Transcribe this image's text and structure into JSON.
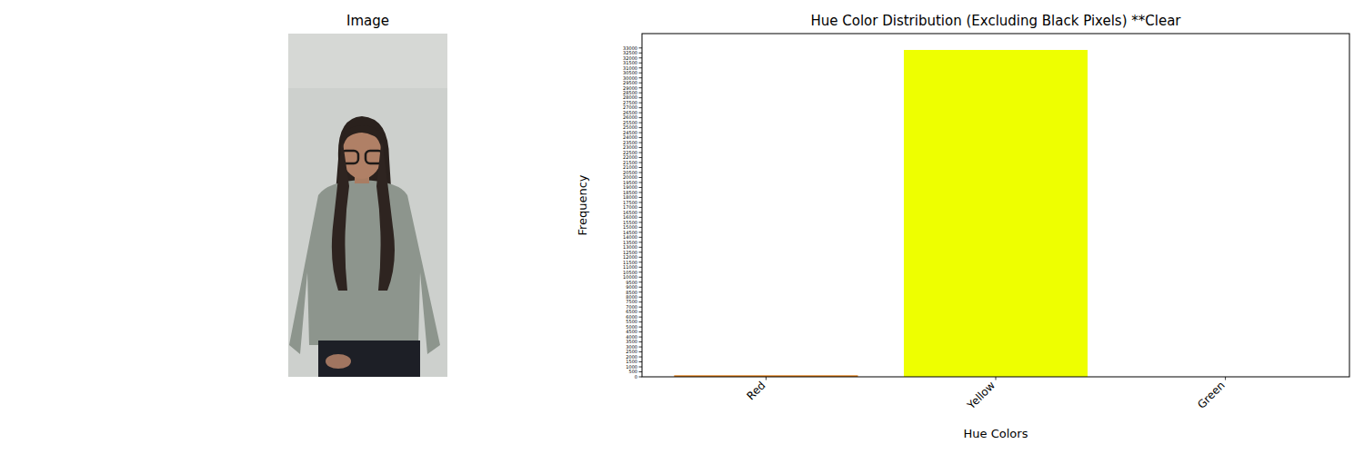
{
  "chart_data": [
    {
      "type": "image",
      "title": "Image"
    },
    {
      "type": "bar",
      "title": "Hue Color Distribution (Excluding Black Pixels) **Clear",
      "xlabel": "Hue Colors",
      "ylabel": "Frequency",
      "categories": [
        "Red",
        "Yellow",
        "Green"
      ],
      "values": [
        150,
        32800,
        0
      ],
      "colors": [
        "#e07a10",
        "#eeff00",
        "#00c000"
      ],
      "ylim": [
        0,
        34440
      ],
      "yticks": [
        0,
        500,
        1000,
        1500,
        2000,
        2500,
        3000,
        3500,
        4000,
        4500,
        5000,
        5500,
        6000,
        6500,
        7000,
        7500,
        8000,
        8500,
        9000,
        9500,
        10000,
        10500,
        11000,
        11500,
        12000,
        12500,
        13000,
        13500,
        14000,
        14500,
        15000,
        15500,
        16000,
        16500,
        17000,
        17500,
        18000,
        18500,
        19000,
        19500,
        20000,
        20500,
        21000,
        21500,
        22000,
        22500,
        23000,
        23500,
        24000,
        24500,
        25000,
        25500,
        26000,
        26500,
        27000,
        27500,
        28000,
        28500,
        29000,
        29500,
        30000,
        30500,
        31000,
        31500,
        32000,
        32500,
        33000
      ]
    }
  ]
}
